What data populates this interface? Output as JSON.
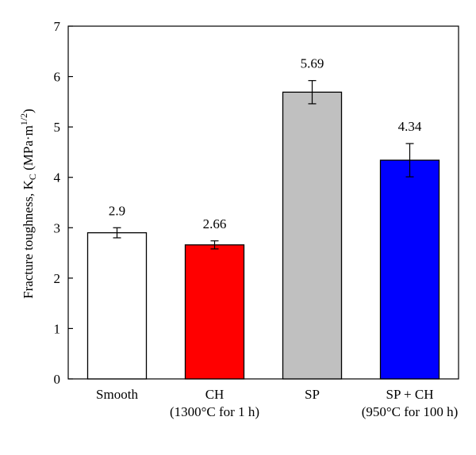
{
  "chart_data": {
    "type": "bar",
    "categories": [
      [
        "Smooth"
      ],
      [
        "CH",
        "(1300°C for 1 h)"
      ],
      [
        "SP"
      ],
      [
        "SP + CH",
        "(950°C for 100 h)"
      ]
    ],
    "values": [
      2.9,
      2.66,
      5.69,
      4.34
    ],
    "errors": [
      0.1,
      0.08,
      0.23,
      0.33
    ],
    "data_labels": [
      "2.9",
      "2.66",
      "5.69",
      "4.34"
    ],
    "bar_colors": [
      "#ffffff",
      "#ff0000",
      "#c0c0c0",
      "#0000ff"
    ],
    "ylabel": "Fracture toughness, K",
    "ylabel_sub": "C",
    "ylabel_unit": " (MPa·m",
    "ylabel_sup": "1/2",
    "ylabel_close": ")",
    "ylim": [
      0,
      7
    ],
    "yticks": [
      "0",
      "1",
      "2",
      "3",
      "4",
      "5",
      "6",
      "7"
    ],
    "grid": false,
    "legend": false
  }
}
